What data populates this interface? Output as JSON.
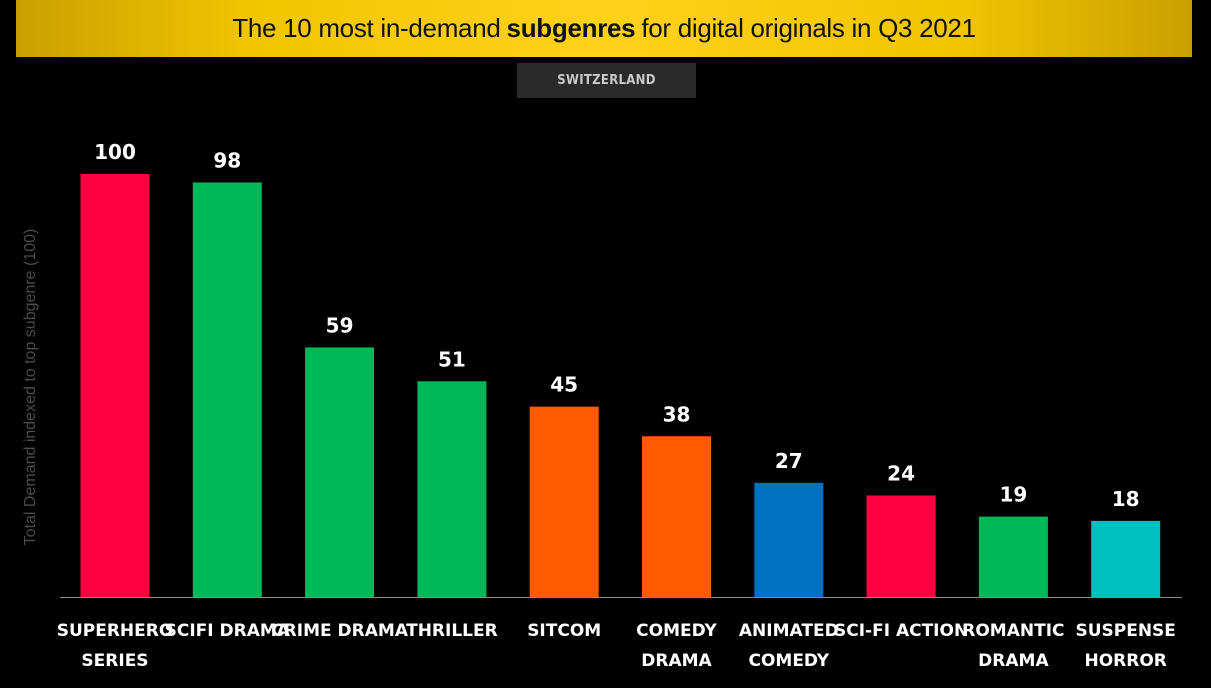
{
  "header": {
    "title_pre": "The 10 most in-demand",
    "title_bold": "subgenres",
    "title_post": "for digital originals in Q3 2021",
    "region": "SWITZERLAND"
  },
  "chart_data": {
    "type": "bar",
    "title": "The 10 most in-demand subgenres for digital originals in Q3 2021",
    "subtitle": "SWITZERLAND",
    "ylabel": "Total Demand indexed to top subgenre (100)",
    "xlabel": "",
    "ylim": [
      0,
      100
    ],
    "grid": false,
    "categories": [
      [
        "SUPERHERO",
        "SERIES"
      ],
      [
        "SCIFI DRAMA"
      ],
      [
        "CRIME DRAMA"
      ],
      [
        "THRILLER"
      ],
      [
        "SITCOM"
      ],
      [
        "COMEDY",
        "DRAMA"
      ],
      [
        "ANIMATED",
        "COMEDY"
      ],
      [
        "SCI-FI ACTION"
      ],
      [
        "ROMANTIC",
        "DRAMA"
      ],
      [
        "SUSPENSE",
        "HORROR"
      ]
    ],
    "values": [
      100,
      98,
      59,
      51,
      45,
      38,
      27,
      24,
      19,
      18
    ],
    "colors": [
      "#ff0040",
      "#00b857",
      "#00b857",
      "#00b857",
      "#ff5a00",
      "#ff5a00",
      "#0070c0",
      "#ff0040",
      "#00b857",
      "#00c1bd"
    ]
  }
}
